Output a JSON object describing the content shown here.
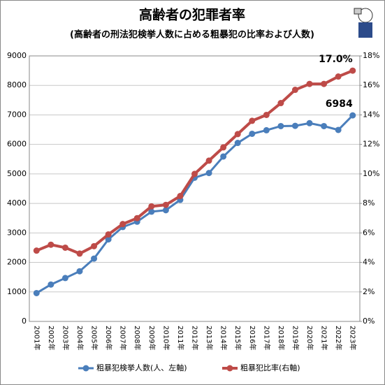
{
  "chart_data": {
    "type": "line",
    "title": "高齢者の犯罪者率",
    "subtitle": "(高齢者の刑法犯検挙人数に占める粗暴犯の比率および人数)",
    "categories": [
      "2001年",
      "2002年",
      "2003年",
      "2004年",
      "2005年",
      "2006年",
      "2007年",
      "2008年",
      "2009年",
      "2010年",
      "2011年",
      "2012年",
      "2013年",
      "2014年",
      "2015年",
      "2016年",
      "2017年",
      "2018年",
      "2019年",
      "2020年",
      "2021年",
      "2022年",
      "2023年"
    ],
    "series": [
      {
        "name": "粗暴犯検挙人数(人、左軸)",
        "color": "#4a7ebb",
        "values": [
          960,
          1250,
          1470,
          1700,
          2130,
          2780,
          3200,
          3380,
          3720,
          3770,
          4120,
          4870,
          5030,
          5590,
          6050,
          6360,
          6480,
          6620,
          6630,
          6720,
          6620,
          6490,
          6984
        ]
      },
      {
        "name": "粗暴犯比率(右軸)",
        "color": "#be4b48",
        "axis": "y2",
        "values": [
          4.8,
          5.2,
          5.0,
          4.6,
          5.1,
          5.9,
          6.6,
          7.0,
          7.8,
          7.9,
          8.5,
          10.0,
          10.9,
          11.8,
          12.7,
          13.6,
          14.0,
          14.8,
          15.7,
          16.1,
          16.1,
          16.6,
          17.0
        ],
        "value_labels": [
          null,
          null,
          null,
          null,
          null,
          null,
          null,
          null,
          null,
          null,
          null,
          null,
          null,
          null,
          null,
          null,
          null,
          null,
          null,
          null,
          null,
          null,
          "17.0%"
        ]
      }
    ],
    "ylim": [
      0,
      9000
    ],
    "yticks": [
      0,
      1000,
      2000,
      3000,
      4000,
      5000,
      6000,
      7000,
      8000,
      9000
    ],
    "y2lim": [
      0,
      18
    ],
    "y2ticks": [
      {
        "value": 0,
        "label": "0%"
      },
      {
        "value": 2,
        "label": "2%"
      },
      {
        "value": 4,
        "label": "4%"
      },
      {
        "value": 6,
        "label": "6%"
      },
      {
        "value": 8,
        "label": "8%"
      },
      {
        "value": 10,
        "label": "10%"
      },
      {
        "value": 12,
        "label": "12%"
      },
      {
        "value": 14,
        "label": "14%"
      },
      {
        "value": 16,
        "label": "16%"
      },
      {
        "value": 18,
        "label": "18%"
      }
    ],
    "grid": true
  }
}
